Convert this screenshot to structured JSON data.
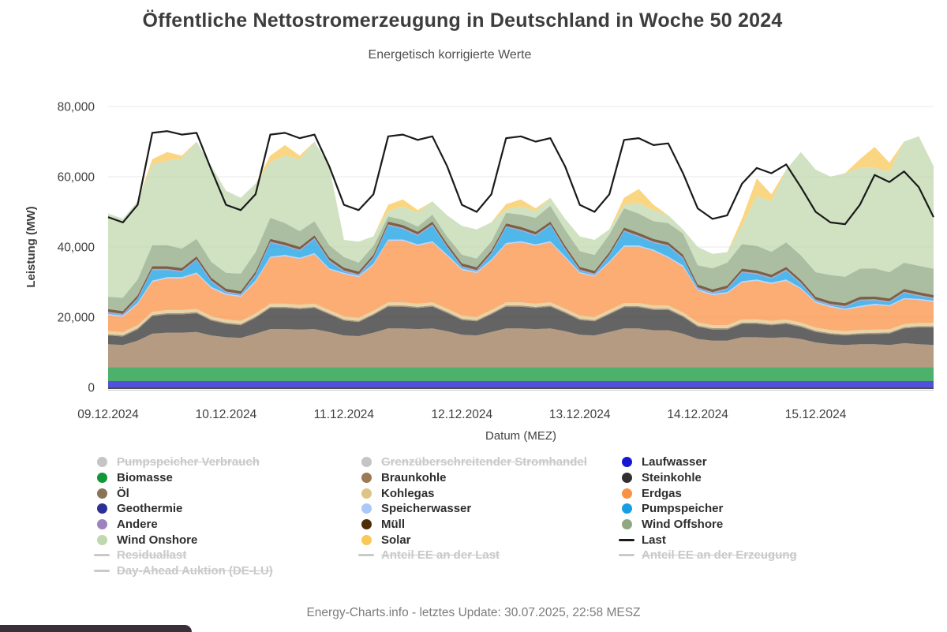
{
  "header": {
    "title": "Öffentliche Nettostromerzeugung in Deutschland in Woche 50 2024",
    "subtitle": "Energetisch korrigierte Werte"
  },
  "footer": {
    "text": "Energy-Charts.info - letztes Update: 30.07.2025, 22:58 MESZ"
  },
  "chart_data": {
    "type": "area",
    "stacked": true,
    "unit": "MW",
    "title": "Öffentliche Nettostromerzeugung in Deutschland in Woche 50 2024",
    "subtitle": "Energetisch korrigierte Werte",
    "xlabel": "Datum (MEZ)",
    "ylabel": "Leistung (MW)",
    "ylim": [
      0,
      80000
    ],
    "grid": true,
    "legend_position": "bottom",
    "n_points": 57,
    "interval_hours": 3,
    "x_range": [
      "09.12.2024 00:00",
      "16.12.2024 00:00"
    ],
    "x_tick_labels": [
      "09.12.2024",
      "10.12.2024",
      "11.12.2024",
      "12.12.2024",
      "13.12.2024",
      "14.12.2024",
      "15.12.2024"
    ],
    "y_ticks": [
      {
        "value": 80000,
        "label": "80,000"
      },
      {
        "value": 60000,
        "label": "60,000"
      },
      {
        "value": 40000,
        "label": "40,000"
      },
      {
        "value": 20000,
        "label": "20,000"
      },
      {
        "value": 0,
        "label": "0"
      }
    ],
    "series": [
      {
        "id": "laufwasser",
        "name": "Laufwasser",
        "color": "#1717d1",
        "constant": 1800
      },
      {
        "id": "biomasse",
        "name": "Biomasse",
        "color": "#109738",
        "constant": 4000
      },
      {
        "id": "braunkohle",
        "name": "Braunkohle",
        "color": "#9c7a58",
        "values": [
          6500,
          6300,
          7500,
          9500,
          9800,
          9800,
          10000,
          9000,
          8500,
          8300,
          9500,
          10800,
          10800,
          10700,
          10800,
          10000,
          9000,
          8800,
          9800,
          11000,
          11000,
          10800,
          11000,
          10200,
          9200,
          9000,
          10000,
          11000,
          11000,
          10800,
          11000,
          10200,
          9200,
          9000,
          10000,
          11000,
          11000,
          10500,
          10500,
          9500,
          8000,
          7500,
          7500,
          8500,
          8500,
          8300,
          8500,
          8000,
          7000,
          6500,
          6300,
          6500,
          6500,
          6300,
          6800,
          6500,
          6300
        ]
      },
      {
        "id": "steinkohle",
        "name": "Steinkohle",
        "color": "#303030",
        "values": [
          2500,
          2400,
          3200,
          5000,
          5200,
          5200,
          5300,
          4200,
          3800,
          3600,
          4500,
          6000,
          6000,
          5800,
          6000,
          5000,
          4200,
          4000,
          5000,
          6200,
          6200,
          6000,
          6200,
          5200,
          4200,
          4000,
          5000,
          6200,
          6200,
          6000,
          6200,
          5200,
          4200,
          4000,
          5000,
          6000,
          6000,
          5800,
          5800,
          4800,
          3500,
          3200,
          3200,
          3800,
          3800,
          3600,
          3800,
          3400,
          3000,
          2800,
          2700,
          2800,
          2900,
          3200,
          4200,
          4800,
          5000
        ]
      },
      {
        "id": "oel",
        "name": "Öl",
        "color": "#8b7356",
        "constant": 350
      },
      {
        "id": "kohlegas",
        "name": "Kohlegas",
        "color": "#dfc486",
        "constant": 900
      },
      {
        "id": "erdgas",
        "name": "Erdgas",
        "color": "#f99245",
        "values": [
          4500,
          4300,
          6000,
          8500,
          9000,
          9000,
          10000,
          8000,
          7000,
          6800,
          9000,
          13000,
          13500,
          13000,
          14000,
          11500,
          12000,
          11500,
          13000,
          17500,
          17500,
          16500,
          17000,
          15000,
          13000,
          12500,
          14000,
          16500,
          17000,
          16500,
          17000,
          14500,
          12000,
          11500,
          13500,
          16000,
          16000,
          15500,
          13500,
          13000,
          9000,
          8500,
          9000,
          10500,
          11000,
          10500,
          11000,
          9500,
          7000,
          6500,
          6000,
          6500,
          7000,
          6500,
          7000,
          6500,
          6000
        ]
      },
      {
        "id": "geothermie",
        "name": "Geothermie",
        "color": "#2b2f96",
        "constant": 20
      },
      {
        "id": "speicherwasser",
        "name": "Speicherwasser",
        "color": "#aac8f8",
        "constant": 350
      },
      {
        "id": "pumpspeicher",
        "name": "Pumpspeicher",
        "color": "#169fe4",
        "values": [
          300,
          200,
          1000,
          3000,
          2000,
          1500,
          3500,
          1500,
          300,
          200,
          1500,
          4000,
          2500,
          2000,
          4000,
          2000,
          400,
          200,
          1500,
          4000,
          3000,
          2500,
          4500,
          2000,
          400,
          200,
          1500,
          4500,
          3000,
          2500,
          4500,
          2000,
          400,
          200,
          1500,
          4000,
          2500,
          2000,
          3000,
          2000,
          300,
          200,
          800,
          2500,
          1500,
          1200,
          2500,
          1200,
          300,
          200,
          500,
          1500,
          1000,
          800,
          1500,
          800,
          500
        ]
      },
      {
        "id": "andere",
        "name": "Andere",
        "color": "#9b84bd",
        "constant": 300
      },
      {
        "id": "muell",
        "name": "Müll",
        "color": "#4f2d0a",
        "constant": 800
      },
      {
        "id": "wind-offshore",
        "name": "Wind Offshore",
        "color": "#8fa883",
        "values": [
          3500,
          3800,
          4500,
          6000,
          6000,
          5500,
          5000,
          4500,
          4500,
          5000,
          5500,
          6000,
          5500,
          4500,
          4000,
          3500,
          3000,
          2500,
          2500,
          1500,
          1500,
          1500,
          2000,
          2000,
          2500,
          2500,
          2500,
          3000,
          3500,
          4000,
          4500,
          4500,
          4500,
          4500,
          5000,
          5500,
          5500,
          5000,
          5500,
          6000,
          5500,
          6000,
          6500,
          7000,
          7000,
          6500,
          7000,
          7000,
          7000,
          7500,
          7500,
          8000,
          8000,
          7500,
          7500,
          7500,
          7500
        ]
      },
      {
        "id": "wind-onshore",
        "name": "Wind Onshore",
        "color": "#c0d8ae",
        "values": [
          23700,
          22500,
          22300,
          23000,
          24000,
          25700,
          27700,
          27300,
          23400,
          21600,
          19500,
          15900,
          19200,
          20500,
          22700,
          22500,
          4900,
          6000,
          2700,
          1500,
          3800,
          3900,
          3800,
          6100,
          8200,
          8300,
          5500,
          1000,
          2300,
          1900,
          2300,
          3100,
          4200,
          4300,
          1500,
          1000,
          3000,
          3200,
          2200,
          1200,
          5200,
          4100,
          3000,
          5200,
          14200,
          14400,
          20700,
          29400,
          29200,
          28000,
          29500,
          28700,
          28600,
          28700,
          34500,
          36900,
          29200
        ]
      },
      {
        "id": "solar",
        "name": "Solar",
        "color": "#f9c858",
        "values": [
          0,
          0,
          0,
          1500,
          2500,
          800,
          0,
          0,
          0,
          0,
          0,
          1800,
          3000,
          1000,
          0,
          0,
          0,
          0,
          0,
          1800,
          2000,
          800,
          0,
          0,
          0,
          0,
          0,
          1500,
          2000,
          800,
          0,
          0,
          0,
          0,
          0,
          2000,
          4000,
          1500,
          0,
          0,
          0,
          0,
          0,
          2000,
          5000,
          2000,
          0,
          0,
          0,
          0,
          0,
          2500,
          6000,
          2500,
          0,
          0,
          0
        ]
      }
    ],
    "line": {
      "id": "last",
      "name": "Last",
      "color": "#1a1a1a",
      "values": [
        48500,
        47000,
        52000,
        72500,
        73000,
        72000,
        72500,
        62000,
        52000,
        50500,
        55000,
        72000,
        72500,
        71000,
        72000,
        63000,
        52000,
        50500,
        55000,
        71500,
        72000,
        70500,
        71500,
        63000,
        52000,
        50000,
        55000,
        71000,
        71500,
        70000,
        71000,
        63000,
        52000,
        50000,
        55000,
        70500,
        71000,
        69000,
        69500,
        61000,
        51000,
        48000,
        49000,
        58000,
        62500,
        61000,
        63500,
        57000,
        50000,
        47000,
        46500,
        52000,
        60500,
        58500,
        61500,
        57000,
        48500
      ]
    }
  },
  "legend": {
    "disabled_color": "#c9c9c9",
    "columns": [
      {
        "items": [
          {
            "label": "Pumpspeicher Verbrauch",
            "marker": "circle",
            "color": "#c5c5c5",
            "disabled": true
          },
          {
            "label": "Biomasse",
            "marker": "circle",
            "color": "#109738",
            "disabled": false
          },
          {
            "label": "Öl",
            "marker": "circle",
            "color": "#8b7356",
            "disabled": false
          },
          {
            "label": "Geothermie",
            "marker": "circle",
            "color": "#2b2f96",
            "disabled": false
          },
          {
            "label": "Andere",
            "marker": "circle",
            "color": "#9b84bd",
            "disabled": false
          },
          {
            "label": "Wind Onshore",
            "marker": "circle",
            "color": "#c0d8ae",
            "disabled": false
          },
          {
            "label": "Residuallast",
            "marker": "line",
            "color": "#c9c9c9",
            "disabled": true
          },
          {
            "label": "Day-Ahead Auktion (DE-LU)",
            "marker": "line",
            "color": "#c9c9c9",
            "disabled": true
          }
        ]
      },
      {
        "items": [
          {
            "label": "Grenzüberschreitender Stromhandel",
            "marker": "circle",
            "color": "#c5c5c5",
            "disabled": true
          },
          {
            "label": "Braunkohle",
            "marker": "circle",
            "color": "#9c7a58",
            "disabled": false
          },
          {
            "label": "Kohlegas",
            "marker": "circle",
            "color": "#dfc486",
            "disabled": false
          },
          {
            "label": "Speicherwasser",
            "marker": "circle",
            "color": "#aac8f8",
            "disabled": false
          },
          {
            "label": "Müll",
            "marker": "circle",
            "color": "#4f2d0a",
            "disabled": false
          },
          {
            "label": "Solar",
            "marker": "circle",
            "color": "#f9c858",
            "disabled": false
          },
          {
            "label": "Anteil EE an der Last",
            "marker": "line",
            "color": "#c9c9c9",
            "disabled": true
          }
        ]
      },
      {
        "items": [
          {
            "label": "Laufwasser",
            "marker": "circle",
            "color": "#1717d1",
            "disabled": false
          },
          {
            "label": "Steinkohle",
            "marker": "circle",
            "color": "#303030",
            "disabled": false
          },
          {
            "label": "Erdgas",
            "marker": "circle",
            "color": "#f99245",
            "disabled": false
          },
          {
            "label": "Pumpspeicher",
            "marker": "circle",
            "color": "#169fe4",
            "disabled": false
          },
          {
            "label": "Wind Offshore",
            "marker": "circle",
            "color": "#8fa883",
            "disabled": false
          },
          {
            "label": "Last",
            "marker": "line",
            "color": "#1a1a1a",
            "disabled": false
          },
          {
            "label": "Anteil EE an der Erzeugung",
            "marker": "line",
            "color": "#c9c9c9",
            "disabled": true
          }
        ]
      }
    ]
  }
}
